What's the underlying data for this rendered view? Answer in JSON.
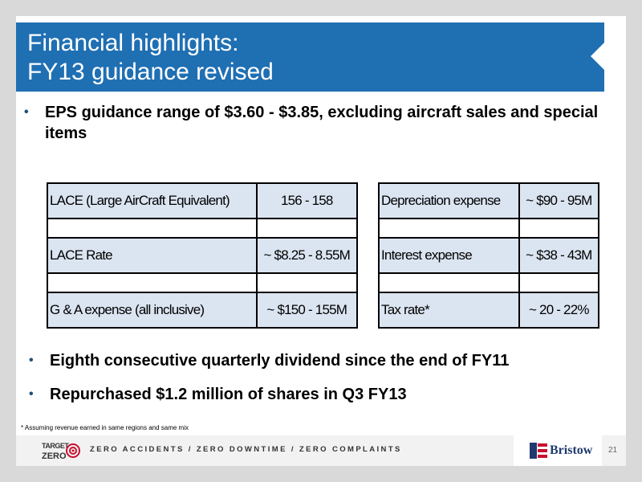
{
  "title": {
    "line1": "Financial highlights:",
    "line2": "FY13 guidance revised"
  },
  "bullets": {
    "eps": "EPS guidance range of $3.60 - $3.85, excluding aircraft sales and special items",
    "dividend": "Eighth consecutive quarterly dividend since the end of FY11",
    "repurchase": "Repurchased $1.2 million of shares in Q3 FY13"
  },
  "left_table": [
    {
      "label": "LACE (Large AirCraft Equivalent)",
      "value": "156 - 158"
    },
    {
      "label": "LACE Rate",
      "value": "~ $8.25 - 8.55M"
    },
    {
      "label": "G & A expense (all inclusive)",
      "value": "~ $150 - 155M"
    }
  ],
  "right_table": [
    {
      "label": "Depreciation expense",
      "value": "~ $90 - 95M"
    },
    {
      "label": "Interest expense",
      "value": "~ $38 - 43M"
    },
    {
      "label": "Tax rate*",
      "value": "~ 20 - 22%"
    }
  ],
  "footnote": "* Assuming revenue earned in same regions and same mix",
  "footer": {
    "logo_top": "TARGET",
    "logo_bottom": "ZERO",
    "tagline": "ZERO ACCIDENTS / ZERO DOWNTIME / ZERO COMPLAINTS",
    "brand": "Bristow",
    "page_number": "21"
  },
  "colors": {
    "title_bar": "#1f6fb3",
    "table_shade": "#dbe5f1",
    "brand_navy": "#1f3a6e",
    "target_red": "#c8102e"
  }
}
